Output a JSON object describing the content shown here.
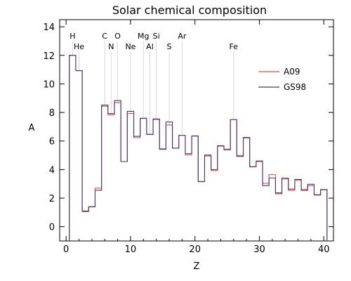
{
  "chart_data": {
    "type": "line",
    "title": "Solar chemical composition",
    "xlabel": "Z",
    "ylabel": "A",
    "xlim": [
      -1,
      41.5
    ],
    "ylim": [
      -1,
      14.5
    ],
    "x_ticks": [
      0,
      10,
      20,
      30,
      40
    ],
    "y_ticks": [
      0,
      2,
      4,
      6,
      8,
      10,
      12,
      14
    ],
    "grid": false,
    "legend_position": "top-right",
    "series": [
      {
        "name": "A09",
        "color": "#e0523a",
        "x": [
          1,
          2,
          3,
          4,
          5,
          6,
          7,
          8,
          9,
          10,
          11,
          12,
          13,
          14,
          15,
          16,
          17,
          18,
          19,
          20,
          21,
          22,
          23,
          24,
          25,
          26,
          27,
          28,
          29,
          30,
          31,
          32,
          33,
          34,
          35,
          36,
          37,
          38,
          39,
          40
        ],
        "values": [
          12.0,
          10.93,
          1.05,
          1.38,
          2.7,
          8.43,
          7.83,
          8.69,
          4.56,
          7.93,
          6.24,
          7.6,
          6.45,
          7.51,
          5.41,
          7.12,
          5.5,
          6.4,
          5.03,
          6.34,
          3.15,
          4.95,
          3.93,
          5.64,
          5.43,
          7.5,
          4.99,
          6.22,
          4.19,
          4.56,
          3.04,
          3.65,
          2.3,
          3.34,
          2.54,
          3.25,
          2.52,
          2.87,
          2.21,
          2.58
        ]
      },
      {
        "name": "GS98",
        "color": "#3c3a6e",
        "x": [
          1,
          2,
          3,
          4,
          5,
          6,
          7,
          8,
          9,
          10,
          11,
          12,
          13,
          14,
          15,
          16,
          17,
          18,
          19,
          20,
          21,
          22,
          23,
          24,
          25,
          26,
          27,
          28,
          29,
          30,
          31,
          32,
          33,
          34,
          35,
          36,
          37,
          38,
          39,
          40
        ],
        "values": [
          12.0,
          10.93,
          1.1,
          1.4,
          2.55,
          8.52,
          7.92,
          8.83,
          4.56,
          8.08,
          6.33,
          7.58,
          6.47,
          7.55,
          5.45,
          7.33,
          5.5,
          6.4,
          5.12,
          6.36,
          3.17,
          5.02,
          4.0,
          5.67,
          5.39,
          7.5,
          4.92,
          6.25,
          4.21,
          4.6,
          2.88,
          3.41,
          2.37,
          3.41,
          2.63,
          3.31,
          2.6,
          2.97,
          2.24,
          2.6
        ]
      }
    ],
    "element_labels": [
      {
        "symbol": "H",
        "z": 1,
        "row": 1
      },
      {
        "symbol": "He",
        "z": 2,
        "row": 2
      },
      {
        "symbol": "C",
        "z": 6,
        "row": 1
      },
      {
        "symbol": "N",
        "z": 7,
        "row": 2
      },
      {
        "symbol": "O",
        "z": 8,
        "row": 1
      },
      {
        "symbol": "Ne",
        "z": 10,
        "row": 2
      },
      {
        "symbol": "Mg",
        "z": 12,
        "row": 1
      },
      {
        "symbol": "Al",
        "z": 13,
        "row": 2
      },
      {
        "symbol": "Si",
        "z": 14,
        "row": 1
      },
      {
        "symbol": "S",
        "z": 16,
        "row": 2
      },
      {
        "symbol": "Ar",
        "z": 18,
        "row": 1
      },
      {
        "symbol": "Fe",
        "z": 26,
        "row": 2
      }
    ]
  }
}
